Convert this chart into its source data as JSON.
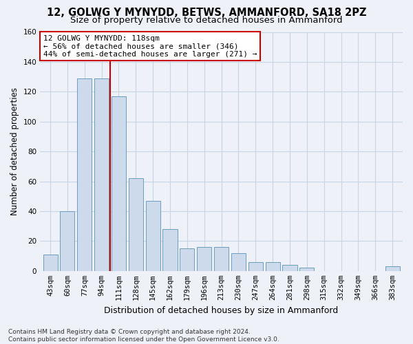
{
  "title": "12, GOLWG Y MYNYDD, BETWS, AMMANFORD, SA18 2PZ",
  "subtitle": "Size of property relative to detached houses in Ammanford",
  "xlabel": "Distribution of detached houses by size in Ammanford",
  "ylabel": "Number of detached properties",
  "categories": [
    "43sqm",
    "60sqm",
    "77sqm",
    "94sqm",
    "111sqm",
    "128sqm",
    "145sqm",
    "162sqm",
    "179sqm",
    "196sqm",
    "213sqm",
    "230sqm",
    "247sqm",
    "264sqm",
    "281sqm",
    "298sqm",
    "315sqm",
    "332sqm",
    "349sqm",
    "366sqm",
    "383sqm"
  ],
  "values": [
    11,
    40,
    129,
    129,
    117,
    62,
    47,
    28,
    15,
    16,
    16,
    12,
    6,
    6,
    4,
    2,
    0,
    0,
    0,
    0,
    3
  ],
  "bar_color": "#ccdaeb",
  "bar_edge_color": "#6a9dbf",
  "vline_x": 3.5,
  "vline_color": "#cc0000",
  "annotation_text": "12 GOLWG Y MYNYDD: 118sqm\n← 56% of detached houses are smaller (346)\n44% of semi-detached houses are larger (271) →",
  "annotation_box_color": "#ffffff",
  "annotation_box_edge_color": "#cc0000",
  "ylim": [
    0,
    160
  ],
  "yticks": [
    0,
    20,
    40,
    60,
    80,
    100,
    120,
    140,
    160
  ],
  "grid_color": "#c8d4e4",
  "background_color": "#eef2f8",
  "footer": "Contains HM Land Registry data © Crown copyright and database right 2024.\nContains public sector information licensed under the Open Government Licence v3.0.",
  "title_fontsize": 10.5,
  "subtitle_fontsize": 9.5,
  "ylabel_fontsize": 8.5,
  "xlabel_fontsize": 9,
  "tick_fontsize": 7.5,
  "footer_fontsize": 6.5,
  "ann_fontsize": 8
}
